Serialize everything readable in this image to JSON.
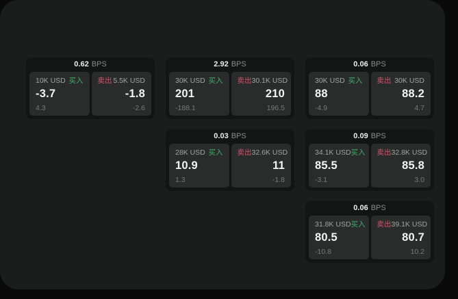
{
  "app": {
    "bps_unit": "BPS",
    "buy_label": "买入",
    "sell_label": "卖出"
  },
  "colors": {
    "background": "#0a0a0a",
    "panel_bg": "#1b1c1c",
    "card_bg": "#131414",
    "tile_bg": "#2a2b2b",
    "buy_green": "#3fae68",
    "sell_red": "#cf5468"
  },
  "cards": [
    {
      "bps": "0.62",
      "buy": {
        "amount": "10K USD",
        "value": "-3.7",
        "delta": "4.3"
      },
      "sell": {
        "amount": "5.5K USD",
        "value": "-1.8",
        "delta": "-2.6"
      }
    },
    {
      "bps": "2.92",
      "buy": {
        "amount": "30K USD",
        "value": "201",
        "delta": "-188.1"
      },
      "sell": {
        "amount": "30.1K USD",
        "value": "210",
        "delta": "196.5"
      }
    },
    {
      "bps": "0.06",
      "buy": {
        "amount": "30K USD",
        "value": "88",
        "delta": "-4.9"
      },
      "sell": {
        "amount": "30K USD",
        "value": "88.2",
        "delta": "4.7"
      }
    },
    {
      "bps": "0.03",
      "buy": {
        "amount": "28K USD",
        "value": "10.9",
        "delta": "1.3"
      },
      "sell": {
        "amount": "32.6K USD",
        "value": "11",
        "delta": "-1.8"
      }
    },
    {
      "bps": "0.09",
      "buy": {
        "amount": "34.1K USD",
        "value": "85.5",
        "delta": "-3.1"
      },
      "sell": {
        "amount": "32.8K USD",
        "value": "85.8",
        "delta": "3.0"
      }
    },
    {
      "bps": "0.06",
      "buy": {
        "amount": "31.8K USD",
        "value": "80.5",
        "delta": "-10.8"
      },
      "sell": {
        "amount": "39.1K USD",
        "value": "80.7",
        "delta": "10.2"
      }
    }
  ]
}
